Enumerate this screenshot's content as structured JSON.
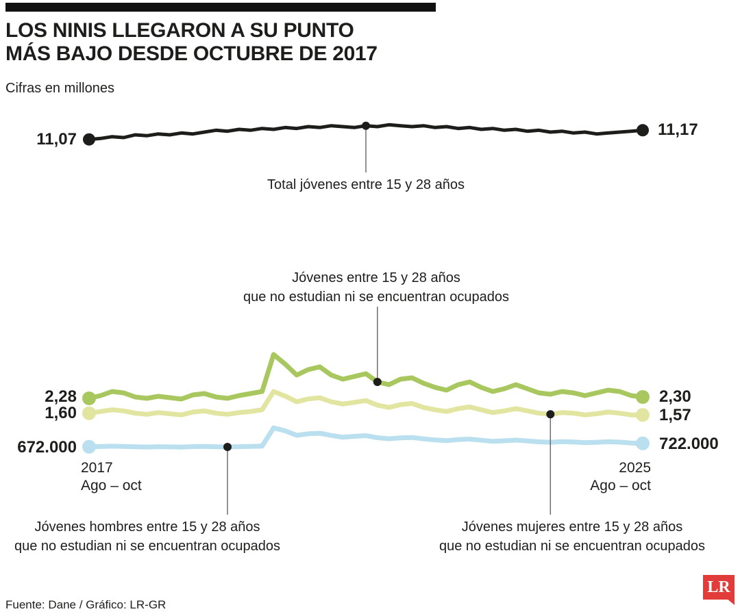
{
  "header": {
    "title_line1": "LOS NINIS LLEGARON A SU PUNTO",
    "title_line2": "MÁS BAJO DESDE OCTUBRE DE 2017",
    "subtitle": "Cifras en millones"
  },
  "top_chart": {
    "start_label": "11,07",
    "end_label": "11,17",
    "annotation": "Total jóvenes entre 15 y 28 años"
  },
  "bottom_chart": {
    "total_ninis": {
      "start_label": "2,28",
      "end_label": "2,30",
      "annotation_line1": "Jóvenes entre 15 y 28 años",
      "annotation_line2": "que no estudian ni se encuentran ocupados"
    },
    "mujeres": {
      "start_label": "1,60",
      "end_label": "1,57",
      "annotation_line1": "Jóvenes mujeres entre 15 y 28 años",
      "annotation_line2": "que no estudian ni se encuentran ocupados"
    },
    "hombres": {
      "start_label": "672.000",
      "end_label": "722.000",
      "annotation_line1": "Jóvenes hombres entre 15 y 28 años",
      "annotation_line2": "que no estudian ni se encuentran ocupados"
    }
  },
  "axis": {
    "left_year": "2017",
    "left_period": "Ago – oct",
    "right_year": "2025",
    "right_period": "Ago – oct"
  },
  "footer": {
    "source": "Fuente: Dane / Gráfico: LR-GR",
    "logo_text": "LR"
  },
  "colors": {
    "line_black": "#1d1d1b",
    "line_green": "#a9c75f",
    "line_yellow": "#e2e5a0",
    "line_blue": "#badfee",
    "logo_red": "#e13c39",
    "stem_gray": "#6d6d6d"
  },
  "chart_data": [
    {
      "type": "line",
      "title": "Total jóvenes entre 15 y 28 años",
      "unit": "millones",
      "x_range": [
        "2017 Ago – oct",
        "2025 Ago – oct"
      ],
      "series": [
        {
          "name": "Total jóvenes entre 15 y 28 años",
          "color": "#1d1d1b",
          "start_value": 11.07,
          "end_value": 11.17,
          "values": [
            11.07,
            11.08,
            11.1,
            11.09,
            11.12,
            11.11,
            11.13,
            11.12,
            11.14,
            11.13,
            11.15,
            11.17,
            11.16,
            11.18,
            11.17,
            11.19,
            11.18,
            11.2,
            11.19,
            11.21,
            11.2,
            11.22,
            11.21,
            11.2,
            11.22,
            11.21,
            11.23,
            11.22,
            11.21,
            11.22,
            11.2,
            11.21,
            11.19,
            11.2,
            11.18,
            11.19,
            11.17,
            11.18,
            11.16,
            11.17,
            11.15,
            11.16,
            11.14,
            11.15,
            11.13,
            11.14,
            11.15,
            11.16,
            11.17
          ]
        }
      ]
    },
    {
      "type": "line",
      "title": "Jóvenes entre 15 y 28 años que no estudian ni se encuentran ocupados",
      "unit": "millones",
      "x_range": [
        "2017 Ago – oct",
        "2025 Ago – oct"
      ],
      "series": [
        {
          "name": "Jóvenes entre 15 y 28 años que no estudian ni se encuentran ocupados (total)",
          "color": "#a9c75f",
          "start_value": 2.28,
          "end_value": 2.3,
          "values": [
            2.28,
            2.32,
            2.38,
            2.36,
            2.3,
            2.28,
            2.31,
            2.29,
            2.27,
            2.33,
            2.35,
            2.3,
            2.28,
            2.32,
            2.35,
            2.38,
            2.92,
            2.78,
            2.62,
            2.7,
            2.74,
            2.62,
            2.56,
            2.6,
            2.64,
            2.52,
            2.48,
            2.56,
            2.58,
            2.5,
            2.44,
            2.4,
            2.48,
            2.52,
            2.44,
            2.38,
            2.42,
            2.48,
            2.42,
            2.36,
            2.34,
            2.38,
            2.36,
            2.32,
            2.36,
            2.4,
            2.38,
            2.32,
            2.3
          ]
        },
        {
          "name": "Jóvenes mujeres entre 15 y 28 años que no estudian ni se encuentran ocupados",
          "color": "#e2e5a0",
          "start_value": 1.6,
          "end_value": 1.57,
          "values": [
            1.6,
            1.63,
            1.66,
            1.64,
            1.6,
            1.58,
            1.61,
            1.59,
            1.57,
            1.62,
            1.64,
            1.6,
            1.58,
            1.61,
            1.63,
            1.66,
            1.98,
            1.9,
            1.8,
            1.85,
            1.87,
            1.8,
            1.76,
            1.79,
            1.82,
            1.74,
            1.7,
            1.75,
            1.77,
            1.7,
            1.66,
            1.63,
            1.68,
            1.71,
            1.66,
            1.61,
            1.64,
            1.68,
            1.64,
            1.6,
            1.58,
            1.61,
            1.6,
            1.57,
            1.59,
            1.62,
            1.6,
            1.57,
            1.57
          ]
        },
        {
          "name": "Jóvenes hombres entre 15 y 28 años que no estudian ni se encuentran ocupados",
          "color": "#badfee",
          "start_value": 0.672,
          "end_value": 0.722,
          "values": [
            0.672,
            0.676,
            0.681,
            0.678,
            0.672,
            0.669,
            0.674,
            0.671,
            0.668,
            0.675,
            0.678,
            0.672,
            0.67,
            0.674,
            0.678,
            0.682,
            0.948,
            0.905,
            0.84,
            0.862,
            0.87,
            0.838,
            0.812,
            0.825,
            0.835,
            0.805,
            0.79,
            0.802,
            0.808,
            0.788,
            0.772,
            0.762,
            0.778,
            0.785,
            0.768,
            0.752,
            0.76,
            0.77,
            0.758,
            0.745,
            0.738,
            0.748,
            0.742,
            0.732,
            0.738,
            0.746,
            0.74,
            0.728,
            0.722
          ]
        }
      ]
    }
  ]
}
